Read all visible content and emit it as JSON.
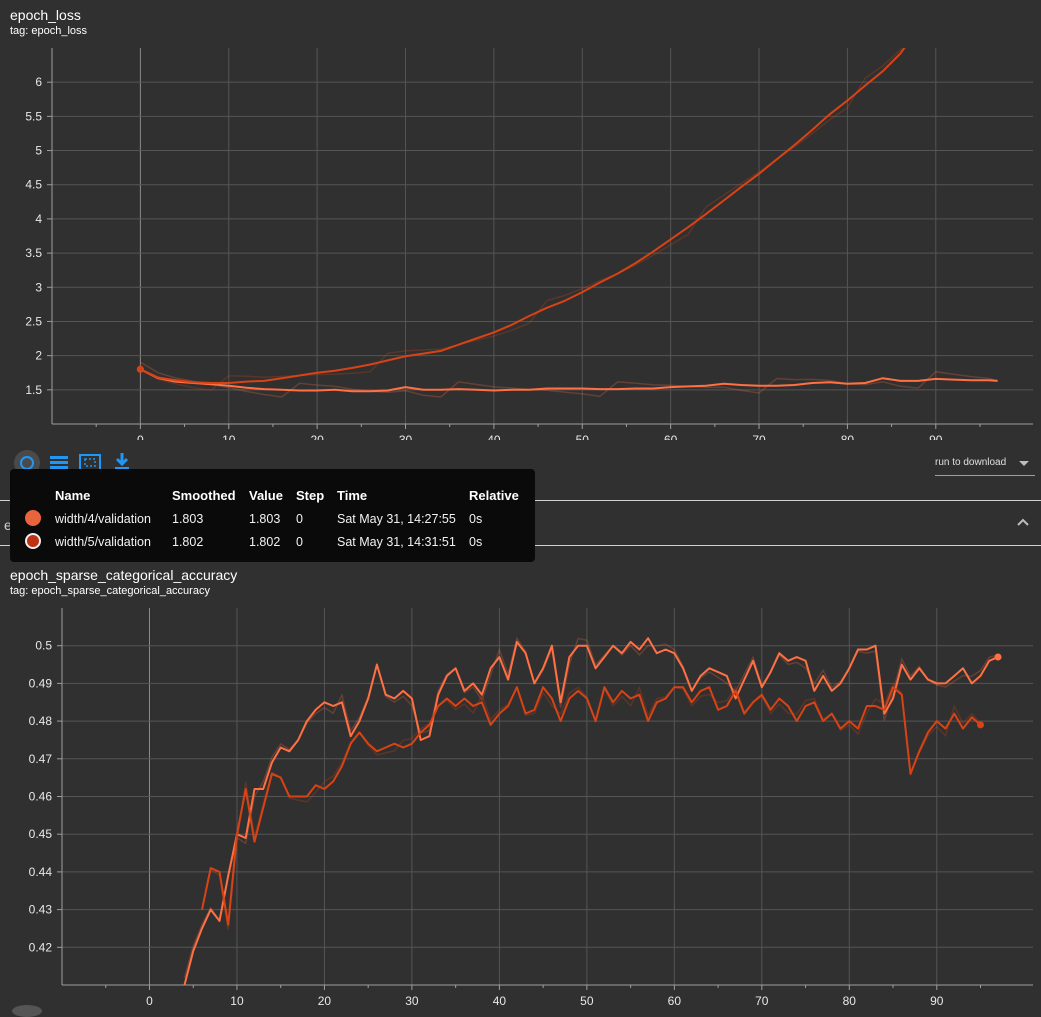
{
  "top_card": {
    "title": "epoch_loss",
    "tag": "tag: epoch_loss"
  },
  "bottom_card": {
    "title": "epoch_sparse_categorical_accuracy",
    "tag": "tag: epoch_sparse_categorical_accuracy"
  },
  "section_header": "epoch_sparse_categorical_accuracy",
  "toolbar": {
    "icons": [
      "fit-domain-icon",
      "toggle-log-scale-icon",
      "expand-chart-icon",
      "download-icon"
    ],
    "run_download": "run to download",
    "accent": "#2196f3"
  },
  "tooltip": {
    "columns": [
      "Name",
      "Smoothed",
      "Value",
      "Step",
      "Time",
      "Relative"
    ],
    "rows": [
      {
        "name": "width/4/validation",
        "smoothed": "1.803",
        "value": "1.803",
        "step": "0",
        "time": "Sat May 31, 14:27:55",
        "relative": "0s",
        "color": "#e8643c"
      },
      {
        "name": "width/5/validation",
        "smoothed": "1.802",
        "value": "1.802",
        "step": "0",
        "time": "Sat May 31, 14:31:51",
        "relative": "0s",
        "color": "#bf3214"
      }
    ]
  },
  "chart_data": [
    {
      "type": "line",
      "title": "epoch_loss",
      "xlim": [
        -10,
        101
      ],
      "ylim": [
        1.0,
        6.5
      ],
      "x_ticks": [
        0,
        10,
        20,
        30,
        40,
        50,
        60,
        70,
        80,
        90
      ],
      "y_ticks": [
        1.5,
        2,
        2.5,
        3,
        3.5,
        4,
        4.5,
        5,
        5.5,
        6
      ],
      "grid": true,
      "series": [
        {
          "name": "width/4/validation",
          "color": "#ff7043",
          "x": [
            0,
            2,
            4,
            6,
            8,
            10,
            12,
            14,
            16,
            18,
            20,
            22,
            24,
            26,
            28,
            30,
            32,
            34,
            36,
            38,
            40,
            42,
            44,
            46,
            48,
            50,
            52,
            54,
            56,
            58,
            60,
            62,
            64,
            66,
            68,
            70,
            72,
            74,
            76,
            78,
            80,
            82,
            84,
            86,
            88,
            90,
            92,
            94,
            96,
            97
          ],
          "y": [
            1.8,
            1.67,
            1.62,
            1.6,
            1.58,
            1.56,
            1.53,
            1.51,
            1.5,
            1.49,
            1.49,
            1.5,
            1.48,
            1.48,
            1.49,
            1.54,
            1.5,
            1.5,
            1.51,
            1.5,
            1.49,
            1.5,
            1.5,
            1.52,
            1.52,
            1.52,
            1.51,
            1.51,
            1.52,
            1.52,
            1.54,
            1.55,
            1.56,
            1.59,
            1.57,
            1.56,
            1.56,
            1.57,
            1.6,
            1.61,
            1.59,
            1.6,
            1.67,
            1.63,
            1.63,
            1.66,
            1.65,
            1.64,
            1.64,
            1.63
          ]
        },
        {
          "name": "width/5/validation",
          "color": "#d84315",
          "x": [
            0,
            2,
            4,
            6,
            8,
            10,
            12,
            14,
            16,
            18,
            20,
            22,
            24,
            26,
            28,
            30,
            32,
            34,
            36,
            38,
            40,
            42,
            44,
            46,
            48,
            50,
            52,
            54,
            56,
            58,
            60,
            62,
            64,
            66,
            68,
            70,
            72,
            74,
            76,
            78,
            80,
            82,
            84,
            86,
            87
          ],
          "y": [
            1.8,
            1.68,
            1.64,
            1.61,
            1.6,
            1.6,
            1.62,
            1.63,
            1.67,
            1.71,
            1.75,
            1.78,
            1.82,
            1.87,
            1.93,
            1.99,
            2.03,
            2.07,
            2.16,
            2.25,
            2.34,
            2.45,
            2.58,
            2.7,
            2.8,
            2.93,
            3.07,
            3.2,
            3.35,
            3.52,
            3.7,
            3.88,
            4.07,
            4.27,
            4.47,
            4.66,
            4.87,
            5.08,
            5.3,
            5.53,
            5.73,
            5.95,
            6.16,
            6.42,
            6.6
          ]
        }
      ]
    },
    {
      "type": "line",
      "title": "epoch_sparse_categorical_accuracy",
      "xlim": [
        -10,
        101
      ],
      "ylim": [
        0.41,
        0.51
      ],
      "x_ticks": [
        0,
        10,
        20,
        30,
        40,
        50,
        60,
        70,
        80,
        90
      ],
      "y_ticks": [
        0.42,
        0.43,
        0.44,
        0.45,
        0.46,
        0.47,
        0.48,
        0.49,
        0.5
      ],
      "grid": true,
      "series": [
        {
          "name": "width/4/validation",
          "color": "#ff7043",
          "x": [
            4,
            5,
            6,
            7,
            8,
            9,
            10,
            11,
            12,
            13,
            14,
            15,
            16,
            17,
            18,
            19,
            20,
            21,
            22,
            23,
            24,
            25,
            26,
            27,
            28,
            29,
            30,
            31,
            32,
            33,
            34,
            35,
            36,
            37,
            38,
            39,
            40,
            41,
            42,
            43,
            44,
            45,
            46,
            47,
            48,
            49,
            50,
            51,
            52,
            53,
            54,
            55,
            56,
            57,
            58,
            59,
            60,
            61,
            62,
            63,
            64,
            65,
            66,
            67,
            68,
            69,
            70,
            71,
            72,
            73,
            74,
            75,
            76,
            77,
            78,
            79,
            80,
            81,
            82,
            83,
            84,
            85,
            86,
            87,
            88,
            89,
            90,
            91,
            92,
            93,
            94,
            95,
            96,
            97
          ],
          "y": [
            0.41,
            0.419,
            0.425,
            0.43,
            0.427,
            0.439,
            0.45,
            0.449,
            0.462,
            0.462,
            0.469,
            0.473,
            0.472,
            0.475,
            0.48,
            0.483,
            0.485,
            0.484,
            0.485,
            0.476,
            0.48,
            0.486,
            0.495,
            0.487,
            0.486,
            0.488,
            0.486,
            0.475,
            0.476,
            0.487,
            0.492,
            0.494,
            0.488,
            0.49,
            0.487,
            0.494,
            0.497,
            0.491,
            0.501,
            0.498,
            0.49,
            0.494,
            0.5,
            0.485,
            0.497,
            0.5,
            0.5,
            0.494,
            0.497,
            0.5,
            0.498,
            0.501,
            0.499,
            0.502,
            0.498,
            0.499,
            0.498,
            0.494,
            0.488,
            0.492,
            0.494,
            0.493,
            0.492,
            0.486,
            0.491,
            0.496,
            0.489,
            0.493,
            0.498,
            0.496,
            0.497,
            0.496,
            0.488,
            0.492,
            0.488,
            0.49,
            0.494,
            0.499,
            0.499,
            0.5,
            0.482,
            0.486,
            0.495,
            0.491,
            0.494,
            0.491,
            0.49,
            0.49,
            0.492,
            0.494,
            0.49,
            0.492,
            0.496,
            0.497
          ]
        },
        {
          "name": "width/5/validation",
          "color": "#d84315",
          "x": [
            6,
            7,
            8,
            9,
            10,
            11,
            12,
            13,
            14,
            15,
            16,
            17,
            18,
            19,
            20,
            21,
            22,
            23,
            24,
            25,
            26,
            27,
            28,
            29,
            30,
            31,
            32,
            33,
            34,
            35,
            36,
            37,
            38,
            39,
            40,
            41,
            42,
            43,
            44,
            45,
            46,
            47,
            48,
            49,
            50,
            51,
            52,
            53,
            54,
            55,
            56,
            57,
            58,
            59,
            60,
            61,
            62,
            63,
            64,
            65,
            66,
            67,
            68,
            69,
            70,
            71,
            72,
            73,
            74,
            75,
            76,
            77,
            78,
            79,
            80,
            81,
            82,
            83,
            84,
            85,
            86,
            87,
            88,
            89,
            90,
            91,
            92,
            93,
            94,
            95
          ],
          "y": [
            0.43,
            0.441,
            0.44,
            0.426,
            0.45,
            0.462,
            0.448,
            0.457,
            0.466,
            0.465,
            0.46,
            0.46,
            0.46,
            0.463,
            0.462,
            0.464,
            0.468,
            0.474,
            0.477,
            0.474,
            0.472,
            0.473,
            0.474,
            0.473,
            0.474,
            0.477,
            0.479,
            0.484,
            0.486,
            0.484,
            0.486,
            0.484,
            0.485,
            0.479,
            0.482,
            0.484,
            0.489,
            0.482,
            0.483,
            0.489,
            0.486,
            0.48,
            0.486,
            0.488,
            0.486,
            0.48,
            0.489,
            0.485,
            0.488,
            0.486,
            0.487,
            0.48,
            0.485,
            0.486,
            0.489,
            0.489,
            0.485,
            0.488,
            0.489,
            0.483,
            0.484,
            0.488,
            0.482,
            0.485,
            0.487,
            0.483,
            0.486,
            0.484,
            0.48,
            0.484,
            0.485,
            0.48,
            0.482,
            0.478,
            0.48,
            0.478,
            0.484,
            0.484,
            0.483,
            0.489,
            0.487,
            0.466,
            0.472,
            0.477,
            0.48,
            0.478,
            0.482,
            0.478,
            0.481,
            0.479
          ]
        }
      ]
    }
  ]
}
